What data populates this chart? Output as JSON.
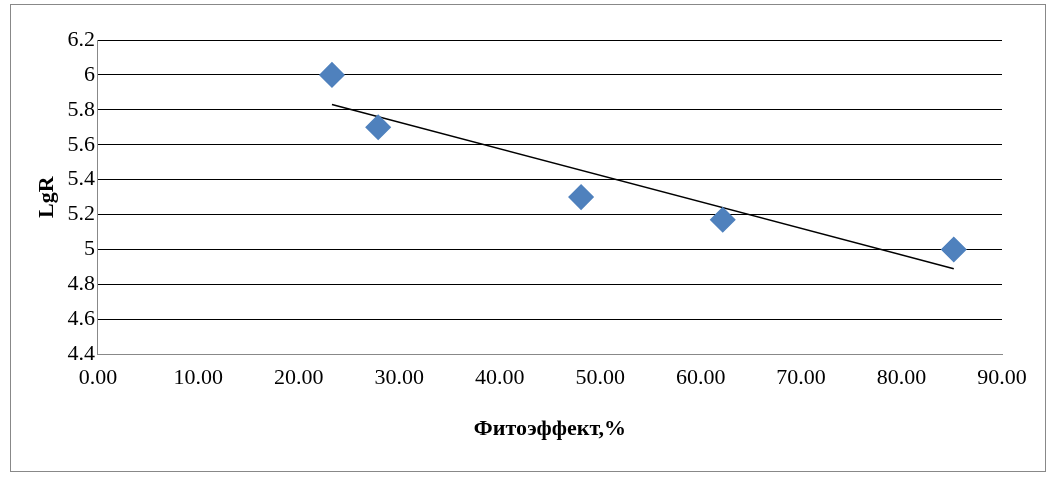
{
  "chart_data": {
    "type": "scatter",
    "xlabel": "Фитоэффект,%",
    "ylabel": "LgR",
    "xlim": [
      0,
      90
    ],
    "xticks": [
      {
        "value": 0,
        "label": "0.00"
      },
      {
        "value": 10,
        "label": "10.00"
      },
      {
        "value": 20,
        "label": "20.00"
      },
      {
        "value": 30,
        "label": "30.00"
      },
      {
        "value": 40,
        "label": "40.00"
      },
      {
        "value": 50,
        "label": "50.00"
      },
      {
        "value": 60,
        "label": "60.00"
      },
      {
        "value": 70,
        "label": "70.00"
      },
      {
        "value": 80,
        "label": "80.00"
      },
      {
        "value": 90,
        "label": "90.00"
      }
    ],
    "ylim": [
      4.4,
      6.2
    ],
    "yticks": [
      4.4,
      4.6,
      4.8,
      5,
      5.2,
      5.4,
      5.6,
      5.8,
      6,
      6.2
    ],
    "grid": "y",
    "legend": false,
    "series": [
      {
        "type": "scatter",
        "color": "#4f81bd",
        "marker": "diamond",
        "x": [
          23.3,
          27.9,
          48.1,
          62.2,
          85.2
        ],
        "values": [
          6.0,
          5.7,
          5.3,
          5.17,
          5.0
        ]
      },
      {
        "type": "line",
        "color": "#000000",
        "marker": "none",
        "line_style": "solid",
        "x": [
          23.3,
          85.2
        ],
        "values": [
          5.83,
          4.89
        ]
      }
    ]
  }
}
